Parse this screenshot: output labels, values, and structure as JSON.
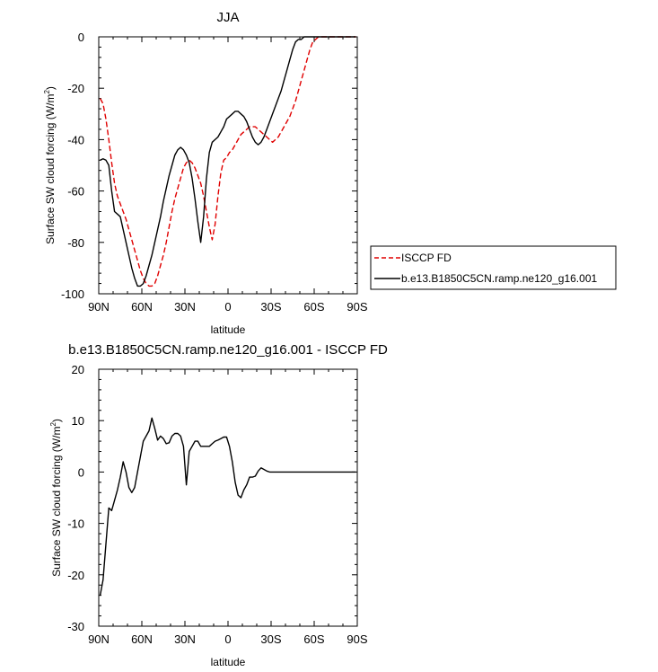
{
  "chart_data": [
    {
      "type": "line",
      "title": "JJA",
      "xlabel": "latitude",
      "ylabel": "Surface SW cloud forcing (W/m",
      "ylabel_sup": "2",
      "ylabel_close": ")",
      "xlim": [
        -90,
        90
      ],
      "ylim": [
        -100,
        0
      ],
      "x_ticks": [
        -90,
        -60,
        -30,
        0,
        30,
        60,
        90
      ],
      "x_tick_labels": [
        "90N",
        "60N",
        "30N",
        "0",
        "30S",
        "60S",
        "90S"
      ],
      "y_ticks": [
        -100,
        -80,
        -60,
        -40,
        -20,
        0
      ],
      "y_tick_labels": [
        "-100",
        "-80",
        "-60",
        "-40",
        "-20",
        "0"
      ],
      "legend_position": "right",
      "series": [
        {
          "name": "ISCCP FD",
          "color": "#e00000",
          "dash": "dashed",
          "x": [
            -89,
            -87,
            -85,
            -83,
            -81,
            -79,
            -77,
            -75,
            -73,
            -71,
            -69,
            -67,
            -65,
            -63,
            -61,
            -59,
            -57,
            -55,
            -53,
            -51,
            -49,
            -47,
            -45,
            -43,
            -41,
            -39,
            -37,
            -35,
            -33,
            -31,
            -29,
            -27,
            -25,
            -23,
            -21,
            -19,
            -17,
            -15,
            -13,
            -11,
            -9,
            -7,
            -5,
            -3,
            -1,
            1,
            3,
            5,
            7,
            9,
            11,
            13,
            15,
            17,
            19,
            21,
            23,
            25,
            27,
            29,
            31,
            33,
            35,
            37,
            39,
            41,
            43,
            45,
            47,
            49,
            51,
            53,
            55,
            57,
            59,
            61,
            63,
            65,
            67,
            69,
            71,
            73,
            75,
            77,
            79,
            81,
            83,
            85,
            87,
            89
          ],
          "values": [
            -24,
            -26,
            -32,
            -40,
            -49,
            -57,
            -62,
            -65,
            -68,
            -71,
            -75,
            -79,
            -83,
            -87,
            -91,
            -94,
            -96,
            -97,
            -97,
            -96,
            -93,
            -89,
            -85,
            -80,
            -74,
            -68,
            -63,
            -59,
            -55,
            -51,
            -49,
            -48,
            -49,
            -51,
            -54,
            -57,
            -62,
            -68,
            -74,
            -79,
            -73,
            -62,
            -53,
            -48,
            -47,
            -45,
            -44,
            -42,
            -40,
            -38,
            -37,
            -36,
            -35,
            -35,
            -35,
            -36,
            -37,
            -38,
            -39,
            -40,
            -41,
            -40,
            -39,
            -37,
            -35,
            -33,
            -31,
            -28,
            -25,
            -21,
            -17,
            -13,
            -9,
            -5,
            -2,
            -1,
            0,
            0,
            0,
            0,
            0,
            0,
            0,
            0,
            0,
            0,
            0,
            0,
            0,
            0
          ]
        },
        {
          "name": "b.e13.B1850C5CN.ramp.ne120_g16.001",
          "color": "#000000",
          "dash": "solid",
          "x": [
            -89,
            -87,
            -85,
            -83,
            -81,
            -79,
            -77,
            -75,
            -73,
            -71,
            -69,
            -67,
            -65,
            -63,
            -61,
            -59,
            -57,
            -55,
            -53,
            -51,
            -49,
            -47,
            -45,
            -43,
            -41,
            -39,
            -37,
            -35,
            -33,
            -31,
            -29,
            -27,
            -25,
            -23,
            -21,
            -19,
            -17,
            -15,
            -13,
            -11,
            -9,
            -7,
            -5,
            -3,
            -1,
            1,
            3,
            5,
            7,
            9,
            11,
            13,
            15,
            17,
            19,
            21,
            23,
            25,
            27,
            29,
            31,
            33,
            35,
            37,
            39,
            41,
            43,
            45,
            47,
            49,
            51,
            53,
            55,
            57,
            59,
            61,
            63,
            65,
            67,
            69,
            71,
            73,
            75,
            77,
            79,
            81,
            83,
            85,
            87,
            89
          ],
          "values": [
            -48,
            -47.5,
            -48,
            -50,
            -60,
            -68,
            -69,
            -70,
            -75,
            -80,
            -85,
            -90,
            -94,
            -97,
            -97,
            -96,
            -93,
            -89,
            -85,
            -80,
            -75,
            -70,
            -64,
            -59,
            -54,
            -50,
            -46,
            -44,
            -43,
            -44,
            -46,
            -49,
            -55,
            -63,
            -72,
            -80,
            -70,
            -55,
            -45,
            -41,
            -40,
            -39,
            -37,
            -35,
            -32,
            -31,
            -30,
            -29,
            -29,
            -30,
            -31,
            -33,
            -36,
            -39,
            -41,
            -42,
            -41,
            -39,
            -36,
            -33,
            -30,
            -27,
            -24,
            -21,
            -17,
            -13,
            -9,
            -5,
            -2,
            -1,
            -1,
            0,
            0,
            0,
            0,
            0,
            0,
            0,
            0,
            0,
            0,
            0,
            0,
            0,
            0,
            0,
            0,
            0,
            0,
            0
          ]
        }
      ]
    },
    {
      "type": "line",
      "title": "b.e13.B1850C5CN.ramp.ne120_g16.001 - ISCCP FD",
      "xlabel": "latitude",
      "ylabel": "Surface SW cloud forcing (W/m",
      "ylabel_sup": "2",
      "ylabel_close": ")",
      "xlim": [
        -90,
        90
      ],
      "ylim": [
        -30,
        20
      ],
      "x_ticks": [
        -90,
        -60,
        -30,
        0,
        30,
        60,
        90
      ],
      "x_tick_labels": [
        "90N",
        "60N",
        "30N",
        "0",
        "30S",
        "60S",
        "90S"
      ],
      "y_ticks": [
        -30,
        -20,
        -10,
        0,
        10,
        20
      ],
      "y_tick_labels": [
        "-30",
        "-20",
        "-10",
        "0",
        "10",
        "20"
      ],
      "series": [
        {
          "color": "#000000",
          "dash": "solid",
          "x": [
            -89,
            -87,
            -85,
            -83,
            -81,
            -79,
            -77,
            -75,
            -73,
            -71,
            -69,
            -67,
            -65,
            -63,
            -61,
            -59,
            -57,
            -55,
            -53,
            -51,
            -49,
            -47,
            -45,
            -43,
            -41,
            -39,
            -37,
            -35,
            -33,
            -31,
            -29,
            -27,
            -25,
            -23,
            -21,
            -19,
            -17,
            -15,
            -13,
            -11,
            -9,
            -7,
            -5,
            -3,
            -1,
            1,
            3,
            5,
            7,
            9,
            11,
            13,
            15,
            17,
            19,
            21,
            23,
            25,
            27,
            29,
            31,
            33,
            35,
            37,
            39,
            41,
            43,
            45,
            47,
            49,
            51,
            53,
            55,
            57,
            59,
            61,
            63,
            65,
            67,
            69,
            71,
            73,
            75,
            77,
            79,
            81,
            83,
            85,
            87,
            89
          ],
          "values": [
            -24,
            -21,
            -14,
            -7,
            -7.5,
            -5.5,
            -3.5,
            -1,
            2,
            0,
            -3,
            -4,
            -3,
            0,
            3,
            6,
            7,
            8,
            10.5,
            8.5,
            6.2,
            7,
            6.5,
            5.5,
            5.7,
            7,
            7.5,
            7.5,
            7,
            5,
            -2.5,
            4,
            5,
            6,
            6,
            5,
            5,
            5,
            5,
            5.5,
            6,
            6.2,
            6.5,
            6.8,
            6.8,
            5,
            2,
            -2,
            -4.5,
            -5,
            -3.5,
            -2.5,
            -1,
            -1,
            -0.8,
            0.2,
            0.8,
            0.5,
            0.2,
            0,
            0,
            0,
            0,
            0,
            0,
            0,
            0,
            0,
            0,
            0,
            0,
            0,
            0,
            0,
            0,
            0,
            0,
            0,
            0,
            0,
            0,
            0,
            0,
            0,
            0,
            0,
            0,
            0,
            0,
            0
          ]
        }
      ]
    }
  ]
}
